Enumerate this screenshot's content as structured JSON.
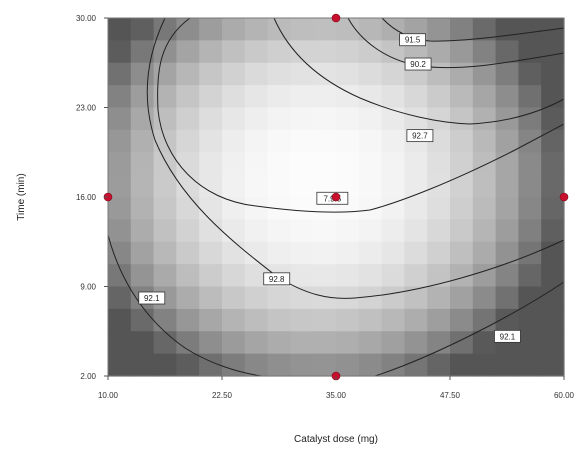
{
  "chart_data": {
    "type": "contour",
    "xlabel": "Catalyst dose (mg)",
    "ylabel": "Time (min)",
    "xlim": [
      10,
      60
    ],
    "ylim": [
      2,
      30
    ],
    "x_ticks": [
      "10.00",
      "22.50",
      "35.00",
      "47.50",
      "60.00"
    ],
    "y_ticks": [
      "2.00",
      "9.00",
      "16.00",
      "23.00",
      "30.00"
    ],
    "grid": false,
    "shading": "grayscale heat map, lighter toward center (higher response)",
    "design_points": [
      {
        "x": 35,
        "y": 30
      },
      {
        "x": 10,
        "y": 16
      },
      {
        "x": 35,
        "y": 16
      },
      {
        "x": 60,
        "y": 16
      },
      {
        "x": 35,
        "y": 2
      }
    ],
    "contour_labels": [
      {
        "text": "91.5",
        "x": 43.4,
        "y": 28.3
      },
      {
        "text": "90.2",
        "x": 44.0,
        "y": 26.4
      },
      {
        "text": "92.7",
        "x": 44.2,
        "y": 20.8
      },
      {
        "text": "7.9.5",
        "x": 34.6,
        "y": 15.9
      },
      {
        "text": "92.8",
        "x": 28.5,
        "y": 9.6
      },
      {
        "text": "92.1",
        "x": 14.8,
        "y": 8.1
      },
      {
        "text": "92.1",
        "x": 53.8,
        "y": 5.1
      }
    ]
  }
}
